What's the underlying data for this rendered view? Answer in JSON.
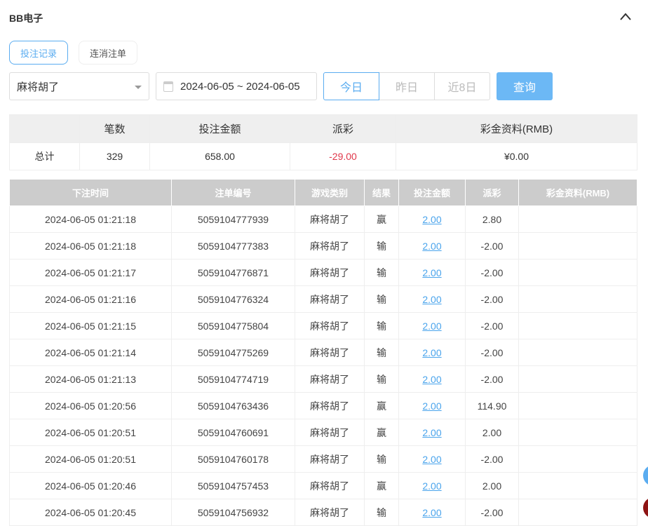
{
  "header": {
    "title": "BB电子"
  },
  "tabs": [
    {
      "label": "投注记录",
      "active": true
    },
    {
      "label": "连消注单",
      "active": false
    }
  ],
  "filters": {
    "game": "麻将胡了",
    "date_range": "2024-06-05 ~ 2024-06-05",
    "quick": [
      "今日",
      "昨日",
      "近8日"
    ],
    "quick_active": "今日",
    "search_label": "查询"
  },
  "summary": {
    "headers": [
      "",
      "笔数",
      "投注金额",
      "派彩",
      "彩金资料(RMB)"
    ],
    "row": [
      "总计",
      "329",
      "658.00",
      "-29.00",
      "¥0.00"
    ]
  },
  "table": {
    "headers": [
      "下注时间",
      "注单编号",
      "游戏类别",
      "结果",
      "投注金额",
      "派彩",
      "彩金资料(RMB)"
    ],
    "rows": [
      [
        "2024-06-05 01:21:18",
        "5059104777939",
        "麻将胡了",
        "赢",
        "2.00",
        "2.80",
        ""
      ],
      [
        "2024-06-05 01:21:18",
        "5059104777383",
        "麻将胡了",
        "输",
        "2.00",
        "-2.00",
        ""
      ],
      [
        "2024-06-05 01:21:17",
        "5059104776871",
        "麻将胡了",
        "输",
        "2.00",
        "-2.00",
        ""
      ],
      [
        "2024-06-05 01:21:16",
        "5059104776324",
        "麻将胡了",
        "输",
        "2.00",
        "-2.00",
        ""
      ],
      [
        "2024-06-05 01:21:15",
        "5059104775804",
        "麻将胡了",
        "输",
        "2.00",
        "-2.00",
        ""
      ],
      [
        "2024-06-05 01:21:14",
        "5059104775269",
        "麻将胡了",
        "输",
        "2.00",
        "-2.00",
        ""
      ],
      [
        "2024-06-05 01:21:13",
        "5059104774719",
        "麻将胡了",
        "输",
        "2.00",
        "-2.00",
        ""
      ],
      [
        "2024-06-05 01:20:56",
        "5059104763436",
        "麻将胡了",
        "赢",
        "2.00",
        "114.90",
        ""
      ],
      [
        "2024-06-05 01:20:51",
        "5059104760691",
        "麻将胡了",
        "赢",
        "2.00",
        "2.00",
        ""
      ],
      [
        "2024-06-05 01:20:51",
        "5059104760178",
        "麻将胡了",
        "输",
        "2.00",
        "-2.00",
        ""
      ],
      [
        "2024-06-05 01:20:46",
        "5059104757453",
        "麻将胡了",
        "赢",
        "2.00",
        "2.00",
        ""
      ],
      [
        "2024-06-05 01:20:45",
        "5059104756932",
        "麻将胡了",
        "输",
        "2.00",
        "-2.00",
        ""
      ]
    ]
  },
  "colors": {
    "accent": "#5aacf0",
    "negative": "#e0384b"
  }
}
